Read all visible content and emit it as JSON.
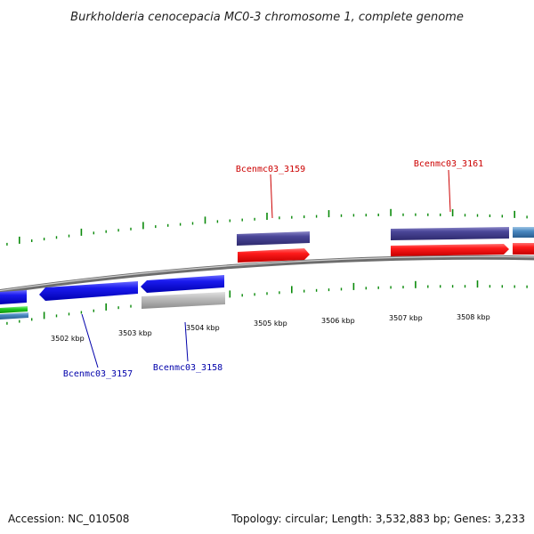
{
  "title": "Burkholderia cenocepacia MC0-3 chromosome 1, complete genome",
  "footer": {
    "accession": "Accession: NC_010508",
    "summary": "Topology: circular; Length: 3,532,883 bp; Genes: 3,233"
  },
  "colors": {
    "ticks": "#0a8a0a",
    "forward_label": "#cc0000",
    "reverse_label": "#0000aa",
    "backbone": "#888888"
  },
  "ticks": [
    {
      "label": "3502 kbp"
    },
    {
      "label": "3503 kbp"
    },
    {
      "label": "3504 kbp"
    },
    {
      "label": "3505 kbp"
    },
    {
      "label": "3506 kbp"
    },
    {
      "label": "3507 kbp"
    },
    {
      "label": "3508 kbp"
    }
  ],
  "gene_labels": [
    {
      "name": "Bcenmc03_3159",
      "strand": "forward"
    },
    {
      "name": "Bcenmc03_3161",
      "strand": "forward"
    },
    {
      "name": "Bcenmc03_3157",
      "strand": "reverse"
    },
    {
      "name": "Bcenmc03_3158",
      "strand": "reverse"
    }
  ]
}
